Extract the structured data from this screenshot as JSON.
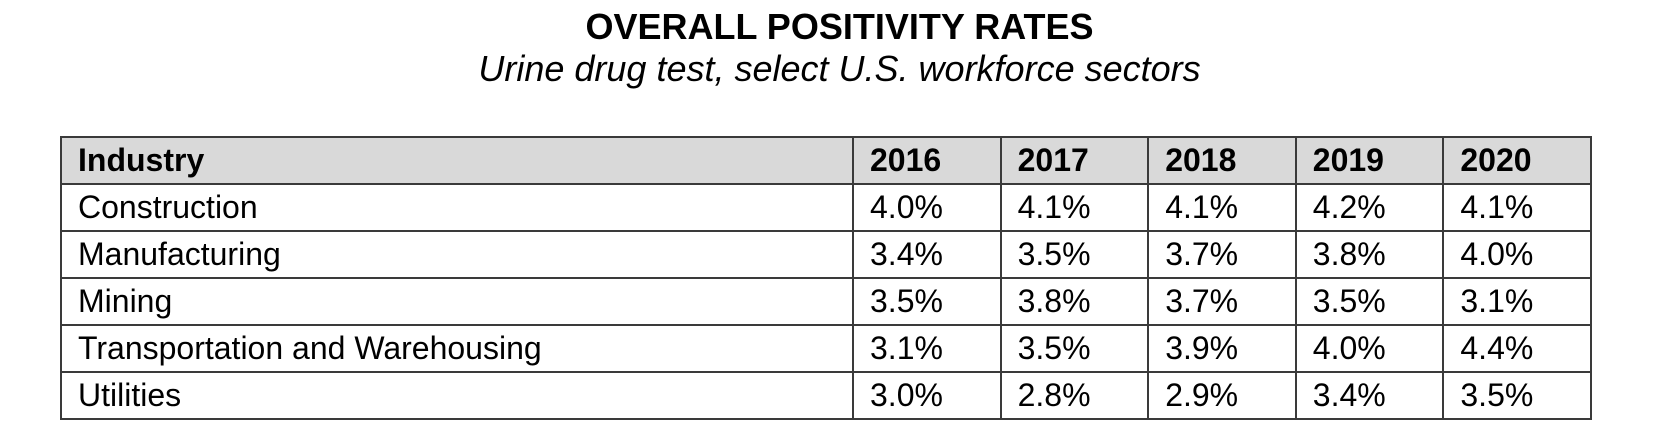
{
  "chart_data": {
    "type": "table",
    "title": "OVERALL POSITIVITY RATES",
    "subtitle": "Urine drug test, select U.S. workforce sectors",
    "columns": [
      "Industry",
      "2016",
      "2017",
      "2018",
      "2019",
      "2020"
    ],
    "rows": [
      [
        "Construction",
        "4.0%",
        "4.1%",
        "4.1%",
        "4.2%",
        "4.1%"
      ],
      [
        "Manufacturing",
        "3.4%",
        "3.5%",
        "3.7%",
        "3.8%",
        "4.0%"
      ],
      [
        "Mining",
        "3.5%",
        "3.8%",
        "3.7%",
        "3.5%",
        "3.1%"
      ],
      [
        "Transportation and Warehousing",
        "3.1%",
        "3.5%",
        "3.9%",
        "4.0%",
        "4.4%"
      ],
      [
        "Utilities",
        "3.0%",
        "2.8%",
        "2.9%",
        "3.4%",
        "3.5%"
      ]
    ],
    "header_background": "#d9d9d9",
    "border_color": "#3a3a3a"
  }
}
